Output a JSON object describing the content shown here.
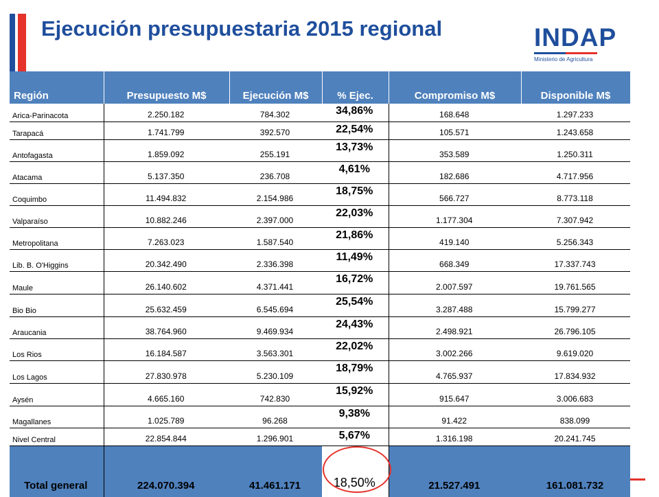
{
  "title": "Ejecución presupuestaria 2015 regional",
  "logo": {
    "name": "INDAP",
    "subtitle": "Ministerio de Agricultura"
  },
  "colors": {
    "brand_blue": "#1f4e9c",
    "brand_red": "#e5322b",
    "header_fill": "#4f81bd"
  },
  "table": {
    "headers": [
      "Región",
      "Presupuesto M$",
      "Ejecución M$",
      "% Ejec.",
      "Compromiso M$",
      "Disponible M$"
    ],
    "rows": [
      [
        "Arica-Parinacota",
        "2.250.182",
        "784.302",
        "34,86%",
        "168.648",
        "1.297.233"
      ],
      [
        "Tarapacá",
        "1.741.799",
        "392.570",
        "22,54%",
        "105.571",
        "1.243.658"
      ],
      [
        "Antofagasta",
        "1.859.092",
        "255.191",
        "13,73%",
        "353.589",
        "1.250.311"
      ],
      [
        "Atacama",
        "5.137.350",
        "236.708",
        "4,61%",
        "182.686",
        "4.717.956"
      ],
      [
        "Coquimbo",
        "11.494.832",
        "2.154.986",
        "18,75%",
        "566.727",
        "8.773.118"
      ],
      [
        "Valparaíso",
        "10.882.246",
        "2.397.000",
        "22,03%",
        "1.177.304",
        "7.307.942"
      ],
      [
        "Metropolitana",
        "7.263.023",
        "1.587.540",
        "21,86%",
        "419.140",
        "5.256.343"
      ],
      [
        "Lib. B. O'Higgins",
        "20.342.490",
        "2.336.398",
        "11,49%",
        "668.349",
        "17.337.743"
      ],
      [
        "Maule",
        "26.140.602",
        "4.371.441",
        "16,72%",
        "2.007.597",
        "19.761.565"
      ],
      [
        "Bio Bio",
        "25.632.459",
        "6.545.694",
        "25,54%",
        "3.287.488",
        "15.799.277"
      ],
      [
        "Araucania",
        "38.764.960",
        "9.469.934",
        "24,43%",
        "2.498.921",
        "26.796.105"
      ],
      [
        "Los Rios",
        "16.184.587",
        "3.563.301",
        "22,02%",
        "3.002.266",
        "9.619.020"
      ],
      [
        "Los Lagos",
        "27.830.978",
        "5.230.109",
        "18,79%",
        "4.765.937",
        "17.834.932"
      ],
      [
        "Aysén",
        "4.665.160",
        "742.830",
        "15,92%",
        "915.647",
        "3.006.683"
      ],
      [
        "Magallanes",
        "1.025.789",
        "96.268",
        "9,38%",
        "91.422",
        "838.099"
      ],
      [
        "Nivel Central",
        "22.854.844",
        "1.296.901",
        "5,67%",
        "1.316.198",
        "20.241.745"
      ]
    ],
    "total": [
      "Total general",
      "224.070.394",
      "41.461.171",
      "18,50%",
      "21.527.491",
      "161.081.732"
    ]
  }
}
